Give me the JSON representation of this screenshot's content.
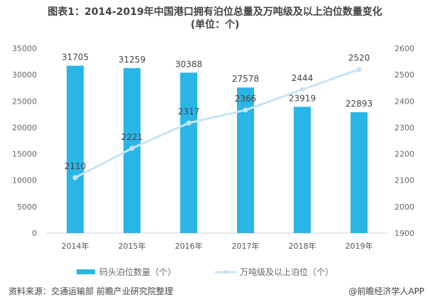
{
  "chart_data": {
    "type": "bar+line",
    "title": "图表1：2014-2019年中国港口拥有泊位总量及万吨级及以上泊位数量变化",
    "subtitle": "(单位：个)",
    "categories": [
      "2014年",
      "2015年",
      "2016年",
      "2017年",
      "2018年",
      "2019年"
    ],
    "series": [
      {
        "name": "码头泊位数量（个）",
        "type": "bar",
        "axis": "left",
        "color": "#29b6e6",
        "values": [
          31705,
          31259,
          30388,
          27578,
          23919,
          22893
        ]
      },
      {
        "name": "万吨级及以上泊位（个）",
        "type": "line",
        "axis": "right",
        "color": "#c6e4f4",
        "values": [
          2110,
          2221,
          2317,
          2366,
          2444,
          2520
        ]
      }
    ],
    "y_left": {
      "range": [
        0,
        35000
      ],
      "ticks": [
        0,
        5000,
        10000,
        15000,
        20000,
        25000,
        30000,
        35000
      ]
    },
    "y_right": {
      "range": [
        1900,
        2600
      ],
      "ticks": [
        1900,
        2000,
        2100,
        2200,
        2300,
        2400,
        2500,
        2600
      ]
    },
    "grid": false,
    "legend": "bottom"
  },
  "footer": {
    "source": "资料来源：交通运输部 前瞻产业研究院整理",
    "credit": "@前瞻经济学人APP"
  }
}
